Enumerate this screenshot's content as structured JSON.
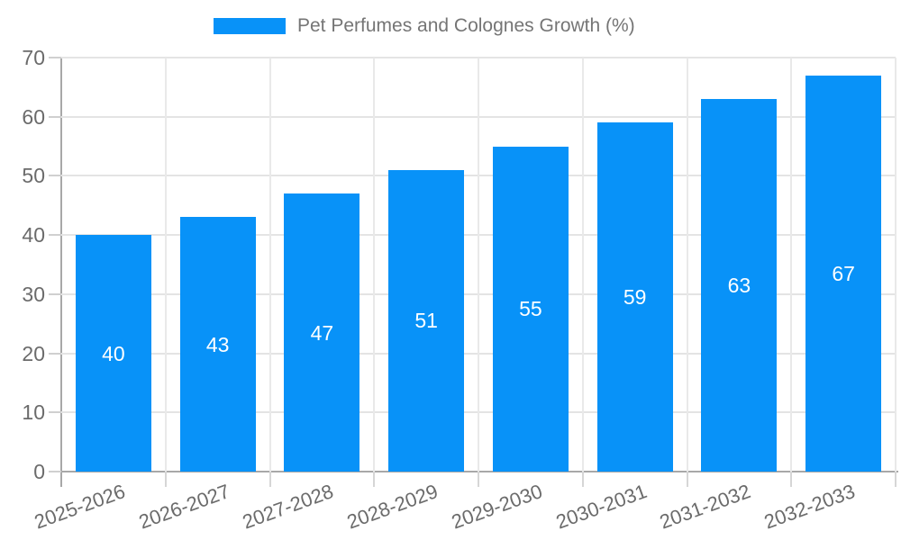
{
  "chart_data": {
    "type": "bar",
    "title": "Pet Perfumes and Colognes Growth (%)",
    "categories": [
      "2025-2026",
      "2026-2027",
      "2027-2028",
      "2028-2029",
      "2029-2030",
      "2030-2031",
      "2031-2032",
      "2032-2033"
    ],
    "values": [
      40,
      43,
      47,
      51,
      55,
      59,
      63,
      67
    ],
    "xlabel": "",
    "ylabel": "",
    "ylim": [
      0,
      70
    ],
    "yticks": [
      0,
      10,
      20,
      30,
      40,
      50,
      60,
      70
    ],
    "grid": true,
    "legend_position": "top-center",
    "value_labels": "inside-middle",
    "colors": {
      "bar": "#0892f8",
      "value_label": "#ffffff",
      "axis_line": "#a8a8a8",
      "grid_h": "#e4e4e4",
      "grid_v": "#e9e9e9",
      "tick_label": "#6b6b6b",
      "legend_text": "#757575"
    }
  }
}
